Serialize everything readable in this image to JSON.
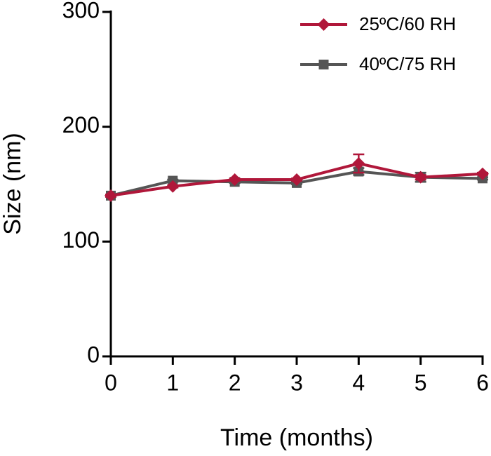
{
  "chart_data": {
    "type": "line",
    "xlabel": "Time (months)",
    "ylabel": "Size (nm)",
    "x": [
      0,
      1,
      2,
      3,
      4,
      5,
      6
    ],
    "series": [
      {
        "name": "25ºC/60 RH",
        "color": "#b0173a",
        "marker": "diamond",
        "values": [
          140,
          148,
          154,
          154,
          168,
          156,
          159
        ],
        "errors": [
          1,
          1,
          1,
          1,
          8,
          2,
          1
        ]
      },
      {
        "name": "40ºC/75 RH",
        "color": "#555555",
        "marker": "square",
        "values": [
          140,
          153,
          152,
          151,
          161,
          156,
          155
        ],
        "errors": [
          1,
          1,
          1,
          1,
          3,
          4,
          1
        ]
      }
    ],
    "xlim": [
      0,
      6
    ],
    "xticks": [
      0,
      1,
      2,
      3,
      4,
      5,
      6
    ],
    "ylim": [
      0,
      300
    ],
    "yticks": [
      0,
      100,
      200,
      300
    ],
    "legend": "upper right"
  }
}
